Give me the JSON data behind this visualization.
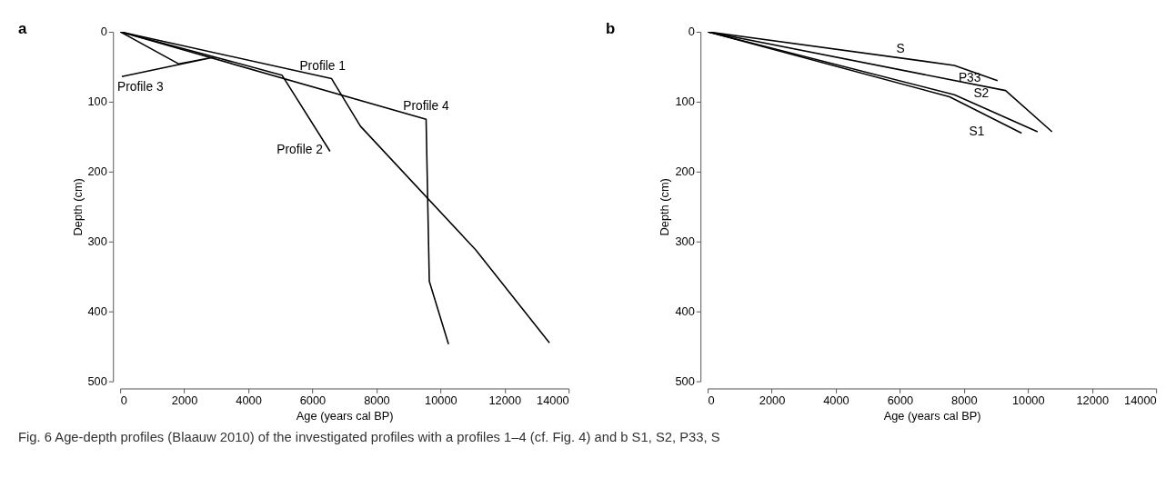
{
  "chart_data": [
    {
      "type": "line",
      "title": "a",
      "xlabel": "Age (years cal BP)",
      "ylabel": "Depth (cm)",
      "xlim": [
        0,
        14000
      ],
      "ylim": [
        500,
        0
      ],
      "xticks": [
        0,
        2000,
        4000,
        6000,
        8000,
        10000,
        12000,
        14000
      ],
      "yticks": [
        0,
        100,
        200,
        300,
        400,
        500
      ],
      "grid": false,
      "legend": false,
      "marker": "none",
      "line_style": "solid",
      "series": [
        {
          "name": "Profile 1",
          "color": "#000000",
          "x": [
            0,
            6600,
            7500,
            11100,
            13400
          ],
          "values": [
            0,
            67,
            135,
            312,
            445
          ]
        },
        {
          "name": "Profile 2",
          "color": "#000000",
          "x": [
            0,
            2950,
            5050,
            6550
          ],
          "values": [
            0,
            36,
            62,
            171
          ]
        },
        {
          "name": "Profile 3",
          "color": "#000000",
          "x": [
            0,
            1830,
            2950,
            50
          ],
          "values": [
            0,
            46,
            36,
            64
          ]
        },
        {
          "name": "Profile 4",
          "color": "#000000",
          "x": [
            0,
            9550,
            9650,
            10250
          ],
          "values": [
            0,
            125,
            357,
            447
          ]
        }
      ],
      "annotations": [
        "Fig. 6  Age-depth profiles (Blaauw 2010) of the investigated profiles with a profiles 1–4 (cf. Fig. 4) and b S1, S2, P33, S"
      ]
    },
    {
      "type": "line",
      "title": "b",
      "xlabel": "Age (years cal BP)",
      "ylabel": "Depth (cm)",
      "xlim": [
        0,
        14000
      ],
      "ylim": [
        500,
        0
      ],
      "xticks": [
        0,
        2000,
        4000,
        6000,
        8000,
        10000,
        12000,
        14000
      ],
      "yticks": [
        0,
        100,
        200,
        300,
        400,
        500
      ],
      "grid": false,
      "legend": false,
      "marker": "none",
      "line_style": "solid",
      "series": [
        {
          "name": "S",
          "color": "#000000",
          "x": [
            0,
            7700,
            9050
          ],
          "values": [
            0,
            48,
            70
          ]
        },
        {
          "name": "P33",
          "color": "#000000",
          "x": [
            0,
            9300,
            10750
          ],
          "values": [
            0,
            84,
            143
          ]
        },
        {
          "name": "S2",
          "color": "#000000",
          "x": [
            0,
            7700,
            10300
          ],
          "values": [
            0,
            90,
            143
          ]
        },
        {
          "name": "S1",
          "color": "#000000",
          "x": [
            0,
            7550,
            9800
          ],
          "values": [
            0,
            93,
            145
          ]
        }
      ]
    }
  ]
}
